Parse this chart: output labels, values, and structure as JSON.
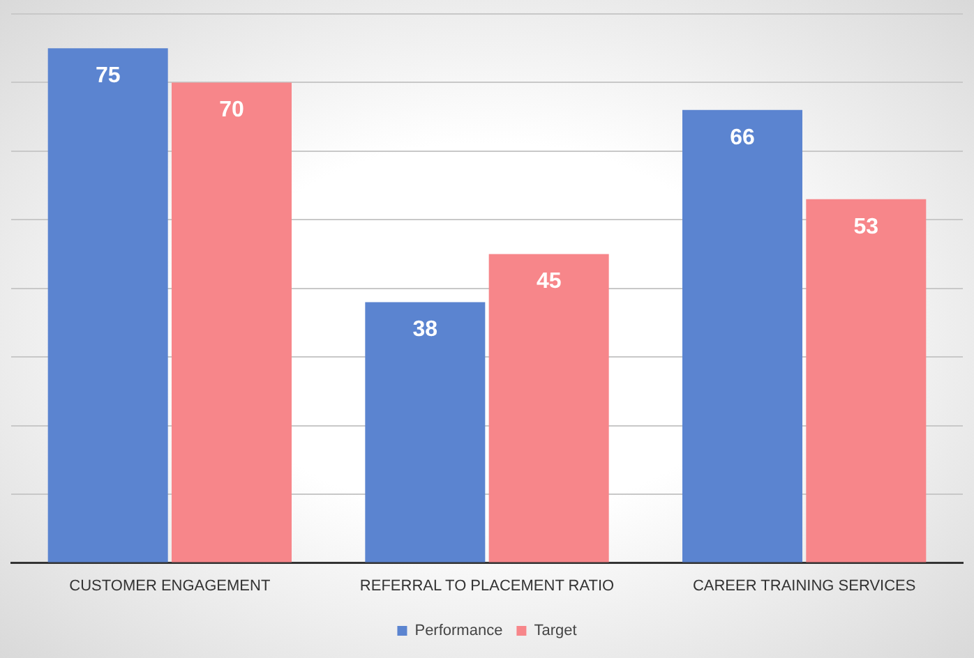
{
  "chart_data": {
    "type": "bar",
    "categories": [
      "CUSTOMER ENGAGEMENT",
      "REFERRAL TO PLACEMENT RATIO",
      "CAREER TRAINING SERVICES"
    ],
    "series": [
      {
        "name": "Performance",
        "color": "#5b84d0",
        "values": [
          75,
          38,
          66
        ]
      },
      {
        "name": "Target",
        "color": "#f7868a",
        "values": [
          70,
          45,
          53
        ]
      }
    ],
    "ylim": [
      0,
      80
    ],
    "yticks": [
      {
        "value": 0,
        "label": null
      },
      {
        "value": 10,
        "label": null
      },
      {
        "value": 20,
        "label": null
      },
      {
        "value": 30,
        "label": null
      },
      {
        "value": 40,
        "label": null
      },
      {
        "value": 50,
        "label": null
      },
      {
        "value": 60,
        "label": null
      },
      {
        "value": 70,
        "label": null
      },
      {
        "value": 80,
        "label": null
      }
    ],
    "grid": "y",
    "legend": "bottom",
    "tick_labels": "x",
    "data_labels": true
  }
}
